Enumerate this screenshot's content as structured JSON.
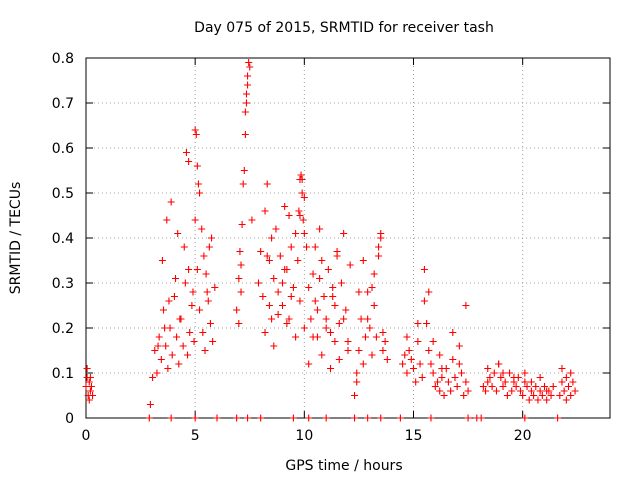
{
  "chart_data": {
    "type": "scatter",
    "title": "Day 075 of 2015, SRMTID for receiver tash",
    "xlabel": "GPS time / hours",
    "ylabel": "SRMTID / TECUs",
    "xlim": [
      0,
      24
    ],
    "ylim": [
      0,
      0.8
    ],
    "grid": true,
    "marker": "+",
    "marker_color": "#ff0000",
    "x_ticks": [
      0,
      5,
      10,
      15,
      20
    ],
    "x_tick_labels": [
      "0",
      "5",
      "10",
      "15",
      "20"
    ],
    "y_ticks": [
      0,
      0.1,
      0.2,
      0.3,
      0.4,
      0.5,
      0.6,
      0.7,
      0.8
    ],
    "y_tick_labels": [
      "0",
      "0.1",
      "0.2",
      "0.3",
      "0.4",
      "0.5",
      "0.6",
      "0.7",
      "0.8"
    ],
    "series": [
      {
        "name": "SRMTID",
        "x": [
          0.0,
          0.05,
          0.1,
          0.15,
          0.2,
          0.25,
          0.3,
          0.05,
          0.15,
          0.2,
          2.95,
          3.05,
          3.15,
          3.25,
          3.35,
          3.45,
          3.55,
          3.65,
          3.75,
          3.85,
          3.95,
          4.05,
          4.15,
          4.25,
          4.35,
          4.45,
          4.55,
          4.65,
          4.75,
          4.85,
          4.95,
          3.3,
          3.5,
          3.7,
          3.9,
          4.1,
          4.3,
          4.5,
          4.7,
          4.9,
          3.6,
          3.8,
          4.2,
          5.0,
          5.05,
          5.1,
          5.15,
          5.2,
          5.3,
          5.4,
          5.5,
          5.6,
          5.7,
          5.8,
          5.9,
          5.0,
          5.1,
          5.2,
          5.35,
          5.45,
          5.55,
          5.65,
          5.75,
          4.6,
          4.7,
          6.9,
          7.0,
          7.05,
          7.1,
          7.15,
          7.2,
          7.25,
          7.3,
          7.35,
          7.4,
          7.45,
          7.5,
          7.6,
          7.3,
          7.35,
          7.4,
          7.0,
          7.1,
          7.9,
          8.0,
          8.1,
          8.2,
          8.3,
          8.4,
          8.5,
          8.6,
          8.7,
          8.8,
          8.9,
          9.0,
          9.1,
          9.2,
          9.3,
          9.4,
          9.5,
          9.6,
          9.7,
          9.8,
          9.9,
          10.0,
          10.1,
          10.2,
          10.3,
          10.4,
          10.5,
          10.6,
          10.7,
          10.8,
          10.9,
          11.0,
          11.1,
          11.2,
          11.3,
          11.4,
          11.5,
          11.6,
          11.7,
          11.8,
          11.9,
          12.0,
          12.1,
          8.2,
          8.4,
          8.6,
          8.8,
          9.0,
          9.2,
          9.4,
          9.6,
          9.8,
          10.0,
          10.2,
          10.4,
          10.6,
          10.8,
          11.0,
          11.2,
          11.4,
          11.6,
          11.8,
          12.0,
          9.75,
          9.8,
          9.85,
          9.9,
          9.95,
          10.0,
          8.3,
          8.5,
          9.1,
          9.3,
          10.5,
          10.7,
          11.3,
          11.5,
          12.3,
          12.4,
          12.5,
          12.6,
          12.7,
          12.8,
          12.9,
          13.0,
          13.1,
          13.2,
          13.3,
          13.4,
          13.5,
          13.6,
          13.7,
          13.8,
          12.5,
          12.7,
          13.2,
          13.4,
          13.5,
          12.9,
          13.1,
          12.4,
          13.6,
          14.5,
          14.6,
          14.7,
          14.8,
          14.9,
          15.0,
          15.1,
          15.2,
          15.3,
          15.4,
          15.5,
          15.6,
          15.7,
          15.8,
          15.9,
          16.0,
          16.1,
          16.2,
          16.3,
          16.4,
          16.5,
          16.6,
          16.7,
          16.8,
          16.9,
          17.0,
          17.1,
          17.2,
          17.3,
          17.4,
          17.5,
          14.7,
          15.2,
          15.5,
          15.7,
          15.9,
          16.2,
          16.8,
          17.1,
          16.3,
          17.4,
          18.2,
          18.3,
          18.4,
          18.5,
          18.6,
          18.7,
          18.8,
          18.9,
          19.0,
          19.1,
          19.2,
          19.3,
          19.4,
          19.5,
          19.6,
          19.7,
          19.8,
          19.9,
          20.0,
          20.1,
          20.2,
          20.3,
          20.4,
          20.5,
          20.6,
          20.7,
          20.8,
          20.9,
          21.0,
          21.1,
          21.2,
          21.3,
          21.4,
          18.4,
          18.9,
          19.1,
          19.6,
          20.1,
          20.4,
          20.8,
          21.1,
          21.7,
          21.8,
          21.9,
          22.0,
          22.1,
          22.2,
          22.3,
          22.4,
          21.8,
          22.0,
          22.2,
          2.9,
          3.9,
          5.0,
          6.0,
          6.9,
          7.4,
          8.0,
          9.5,
          10.2,
          11.0,
          12.3,
          12.9,
          13.5,
          14.4,
          15.8,
          17.5,
          17.9,
          18.1,
          20.1,
          21.6
        ],
        "y": [
          0.07,
          0.09,
          0.05,
          0.08,
          0.06,
          0.07,
          0.05,
          0.11,
          0.04,
          0.09,
          0.03,
          0.09,
          0.15,
          0.1,
          0.18,
          0.13,
          0.24,
          0.16,
          0.11,
          0.2,
          0.14,
          0.27,
          0.18,
          0.12,
          0.22,
          0.16,
          0.3,
          0.14,
          0.19,
          0.25,
          0.17,
          0.16,
          0.35,
          0.44,
          0.48,
          0.31,
          0.22,
          0.38,
          0.33,
          0.28,
          0.2,
          0.26,
          0.41,
          0.64,
          0.63,
          0.56,
          0.52,
          0.5,
          0.42,
          0.36,
          0.32,
          0.26,
          0.21,
          0.17,
          0.29,
          0.44,
          0.33,
          0.24,
          0.19,
          0.15,
          0.28,
          0.38,
          0.4,
          0.59,
          0.57,
          0.24,
          0.31,
          0.37,
          0.28,
          0.43,
          0.52,
          0.55,
          0.63,
          0.7,
          0.76,
          0.79,
          0.78,
          0.44,
          0.68,
          0.72,
          0.74,
          0.21,
          0.34,
          0.3,
          0.37,
          0.27,
          0.46,
          0.52,
          0.35,
          0.22,
          0.31,
          0.42,
          0.28,
          0.36,
          0.25,
          0.47,
          0.33,
          0.22,
          0.38,
          0.29,
          0.41,
          0.35,
          0.45,
          0.53,
          0.49,
          0.38,
          0.29,
          0.22,
          0.32,
          0.26,
          0.18,
          0.42,
          0.35,
          0.27,
          0.22,
          0.33,
          0.19,
          0.29,
          0.25,
          0.37,
          0.21,
          0.3,
          0.41,
          0.24,
          0.17,
          0.34,
          0.19,
          0.25,
          0.16,
          0.23,
          0.3,
          0.21,
          0.27,
          0.18,
          0.26,
          0.2,
          0.12,
          0.18,
          0.24,
          0.14,
          0.2,
          0.11,
          0.17,
          0.13,
          0.22,
          0.15,
          0.46,
          0.53,
          0.54,
          0.5,
          0.44,
          0.41,
          0.36,
          0.4,
          0.33,
          0.45,
          0.38,
          0.31,
          0.27,
          0.36,
          0.05,
          0.1,
          0.15,
          0.22,
          0.12,
          0.18,
          0.28,
          0.2,
          0.14,
          0.25,
          0.18,
          0.38,
          0.41,
          0.15,
          0.17,
          0.13,
          0.28,
          0.35,
          0.32,
          0.36,
          0.4,
          0.22,
          0.29,
          0.08,
          0.19,
          0.12,
          0.14,
          0.1,
          0.15,
          0.13,
          0.11,
          0.08,
          0.17,
          0.12,
          0.09,
          0.26,
          0.21,
          0.15,
          0.12,
          0.1,
          0.07,
          0.08,
          0.06,
          0.09,
          0.05,
          0.11,
          0.08,
          0.06,
          0.13,
          0.09,
          0.07,
          0.12,
          0.1,
          0.05,
          0.08,
          0.06,
          0.18,
          0.21,
          0.33,
          0.28,
          0.17,
          0.14,
          0.19,
          0.16,
          0.11,
          0.25,
          0.07,
          0.06,
          0.08,
          0.09,
          0.07,
          0.1,
          0.06,
          0.12,
          0.09,
          0.07,
          0.08,
          0.05,
          0.1,
          0.06,
          0.08,
          0.07,
          0.09,
          0.06,
          0.05,
          0.08,
          0.07,
          0.04,
          0.06,
          0.05,
          0.07,
          0.04,
          0.06,
          0.05,
          0.07,
          0.04,
          0.06,
          0.05,
          0.07,
          0.11,
          0.12,
          0.1,
          0.09,
          0.1,
          0.08,
          0.09,
          0.06,
          0.05,
          0.08,
          0.06,
          0.09,
          0.07,
          0.05,
          0.08,
          0.06,
          0.11,
          0.04,
          0.1,
          0.0,
          0.0,
          0.0,
          0.0,
          0.0,
          0.0,
          0.0,
          0.0,
          0.0,
          0.0,
          0.0,
          0.0,
          0.0,
          0.0,
          0.0,
          0.0,
          0.0,
          0.0,
          0.0,
          0.0
        ]
      }
    ]
  }
}
